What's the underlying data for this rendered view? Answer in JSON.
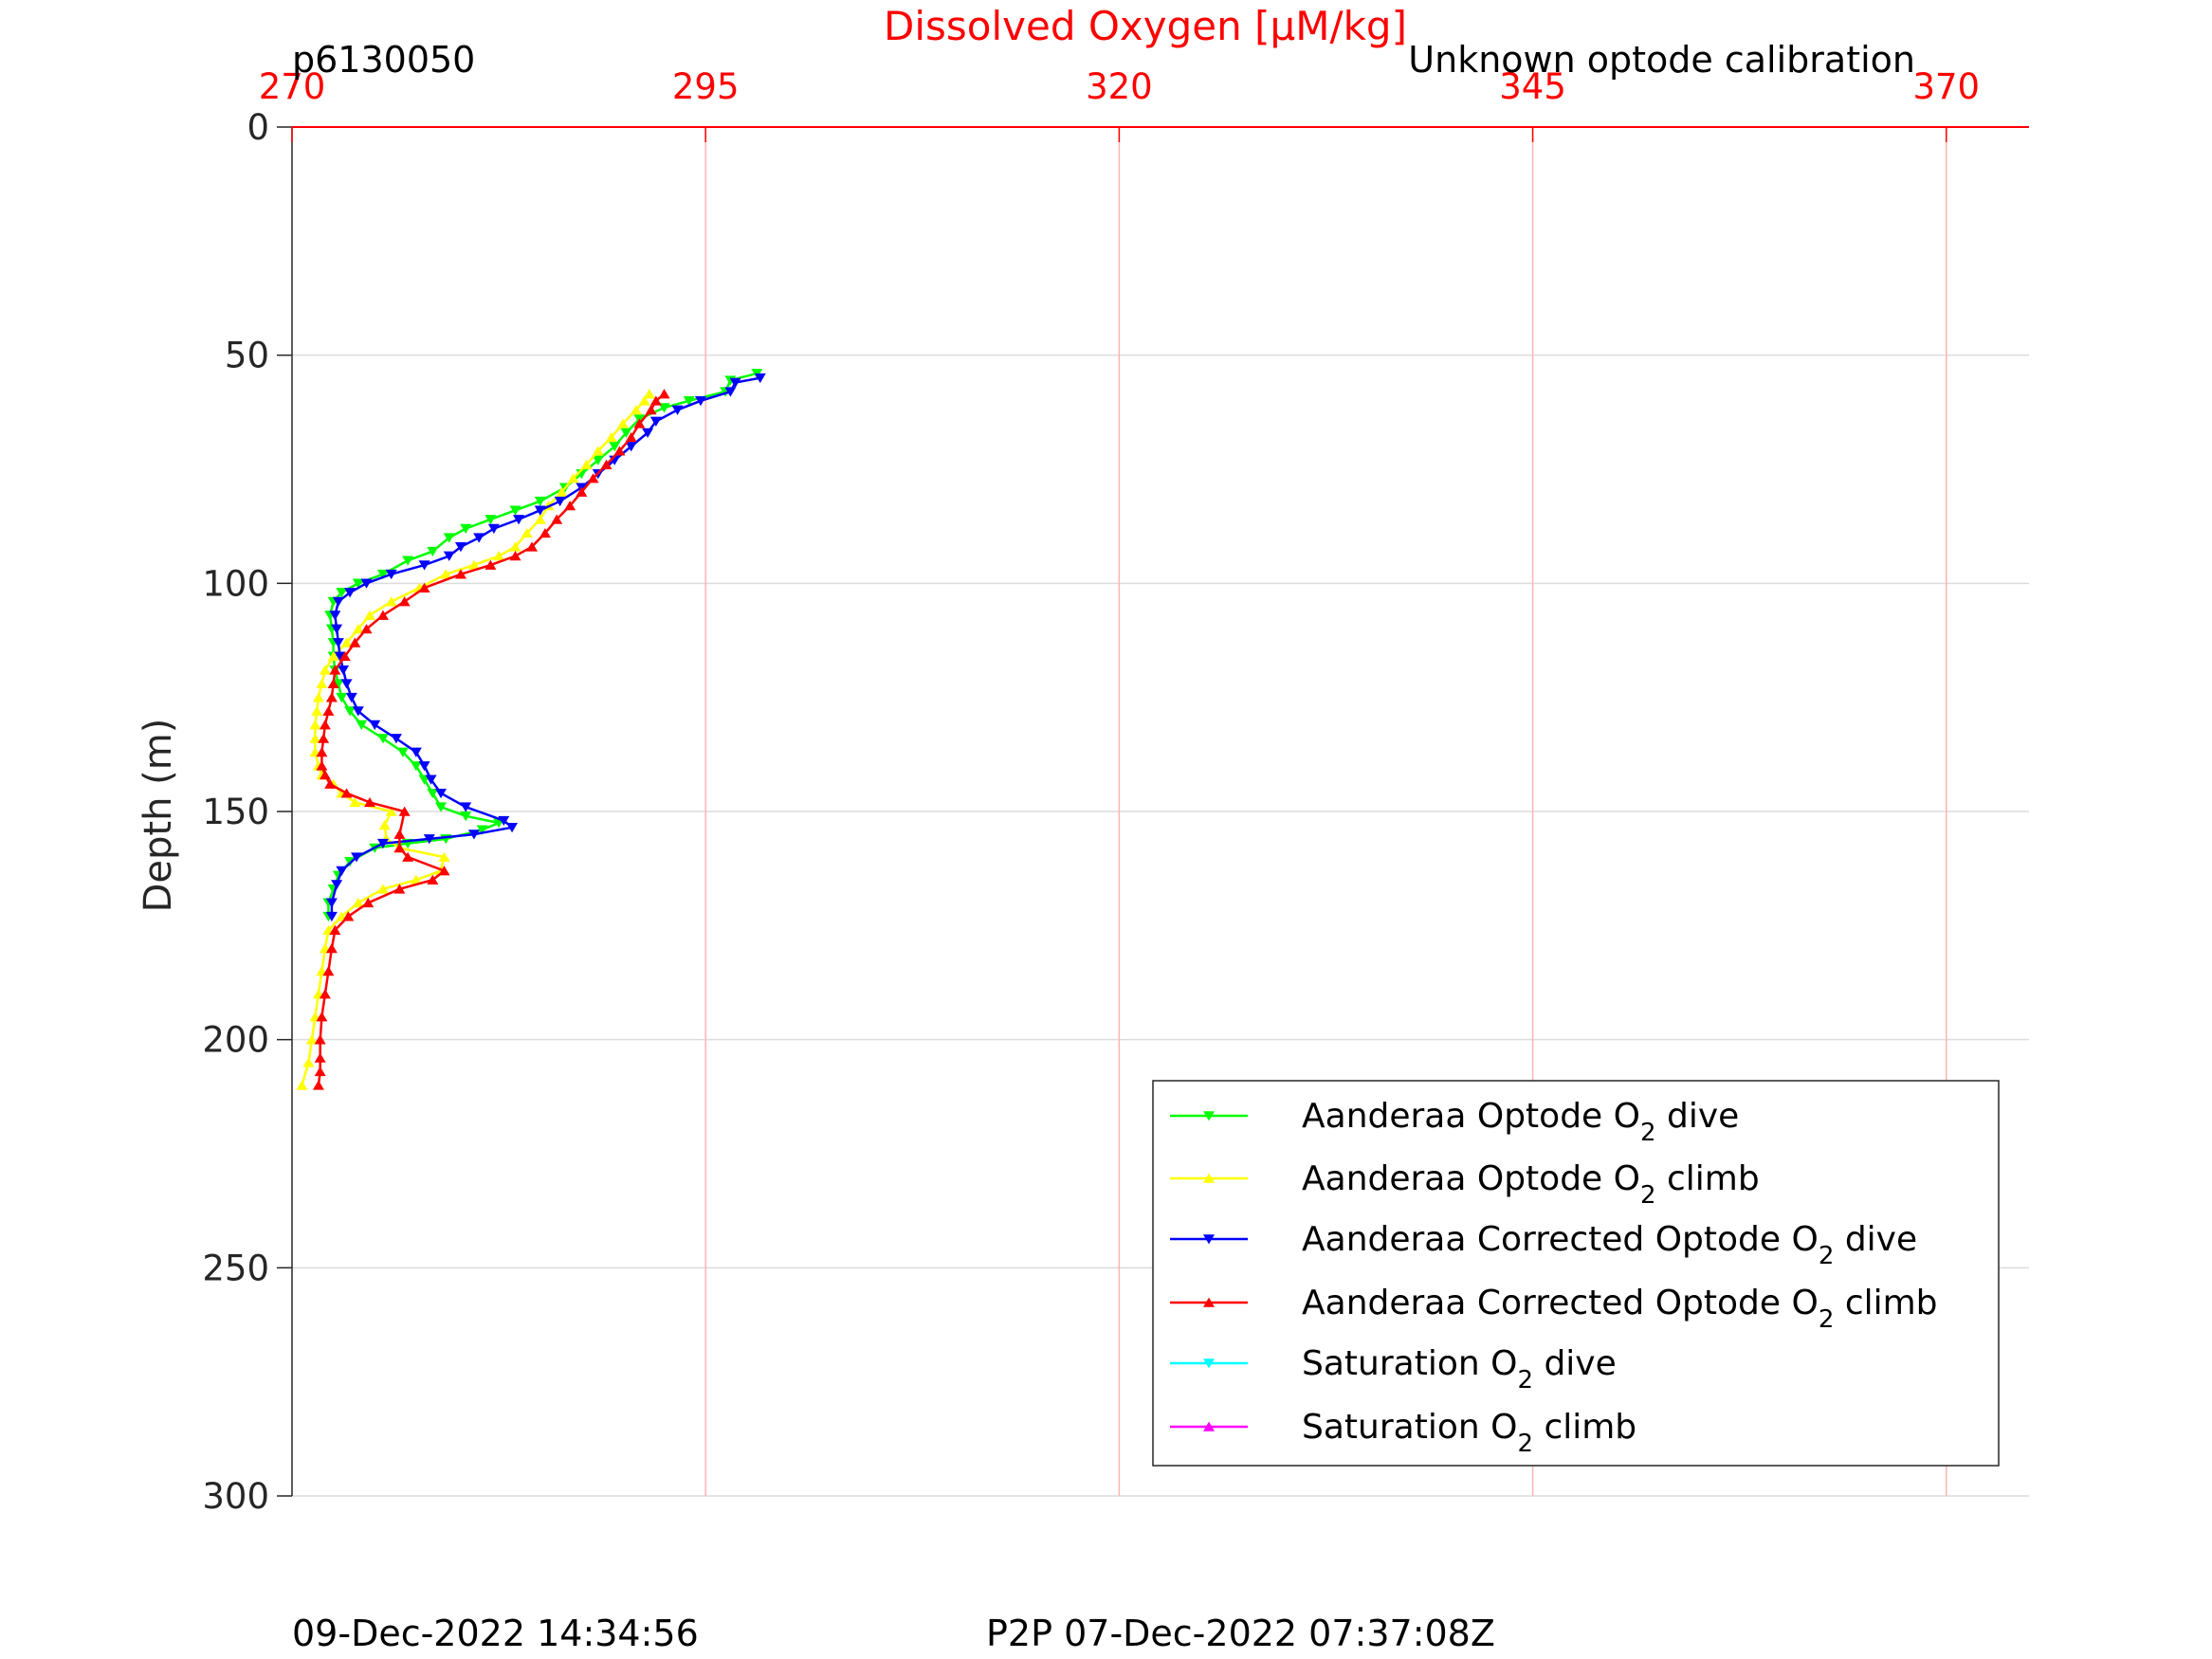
{
  "header": {
    "left_label": "p6130050",
    "right_label": "Unknown optode calibration"
  },
  "footer": {
    "left_timestamp": "09-Dec-2022 14:34:56",
    "right_timestamp": "P2P 07-Dec-2022 07:37:08Z"
  },
  "chart_data": {
    "type": "line",
    "title": "",
    "xlabel": "Dissolved Oxygen [μM/kg]",
    "ylabel": "Depth (m)",
    "xlim": [
      270,
      375
    ],
    "ylim": [
      0,
      300
    ],
    "y_reversed": true,
    "x_axis_position": "top",
    "x_ticks": [
      270,
      295,
      320,
      345,
      370
    ],
    "y_ticks": [
      0,
      50,
      100,
      150,
      200,
      250,
      300
    ],
    "grid": true,
    "legend_position": "bottom-right",
    "colors": {
      "axis_x": "#ff0000",
      "axis_y": "#262626",
      "x_grid": "#ffb3b3",
      "y_grid": "#dcdcdc"
    },
    "series": [
      {
        "name_prefix": "Aanderaa Optode O",
        "name_sub": "2",
        "name_suffix": " dive",
        "color": "#00ff00",
        "marker": "triangle-down",
        "points": [
          [
            298.1,
            54
          ],
          [
            296.5,
            55.5
          ],
          [
            296.2,
            58
          ],
          [
            294,
            60
          ],
          [
            292.5,
            61.5
          ],
          [
            291,
            64
          ],
          [
            290.2,
            67
          ],
          [
            289.5,
            70
          ],
          [
            288.5,
            73
          ],
          [
            287.5,
            76
          ],
          [
            286.5,
            79
          ],
          [
            285,
            82
          ],
          [
            283.5,
            84
          ],
          [
            282,
            86
          ],
          [
            280.5,
            88
          ],
          [
            279.5,
            90
          ],
          [
            278.5,
            93
          ],
          [
            277,
            95
          ],
          [
            275.5,
            98
          ],
          [
            274,
            100
          ],
          [
            273,
            102
          ],
          [
            272.5,
            104
          ],
          [
            272.3,
            107
          ],
          [
            272.4,
            110
          ],
          [
            272.5,
            113
          ],
          [
            272.5,
            116
          ],
          [
            272.6,
            119
          ],
          [
            272.8,
            122
          ],
          [
            273,
            125
          ],
          [
            273.5,
            128
          ],
          [
            274.2,
            131
          ],
          [
            275.5,
            134
          ],
          [
            276.7,
            137
          ],
          [
            277.5,
            140
          ],
          [
            278,
            143
          ],
          [
            278.5,
            146
          ],
          [
            279,
            149
          ],
          [
            280.5,
            151
          ],
          [
            282.5,
            152.5
          ],
          [
            281.5,
            154
          ],
          [
            279.3,
            156
          ],
          [
            277,
            157
          ],
          [
            275,
            158
          ],
          [
            273.5,
            161
          ],
          [
            272.8,
            164
          ],
          [
            272.5,
            167
          ],
          [
            272.2,
            170
          ],
          [
            272.2,
            173
          ]
        ]
      },
      {
        "name_prefix": "Aanderaa Optode O",
        "name_sub": "2",
        "name_suffix": " climb",
        "color": "#ffff00",
        "marker": "triangle-up",
        "points": [
          [
            270.6,
            210
          ],
          [
            271,
            205
          ],
          [
            271.2,
            200
          ],
          [
            271.4,
            195
          ],
          [
            271.6,
            190
          ],
          [
            271.8,
            185
          ],
          [
            272,
            180
          ],
          [
            272.2,
            176
          ],
          [
            273,
            173
          ],
          [
            274,
            170
          ],
          [
            275.5,
            167
          ],
          [
            277.5,
            165
          ],
          [
            279,
            163
          ],
          [
            279.2,
            160
          ],
          [
            276.5,
            158
          ],
          [
            275.7,
            156
          ],
          [
            275.6,
            153
          ],
          [
            276,
            150
          ],
          [
            273.8,
            148
          ],
          [
            273,
            146
          ],
          [
            272.5,
            144
          ],
          [
            271.8,
            142
          ],
          [
            271.6,
            140
          ],
          [
            271.4,
            137
          ],
          [
            271.4,
            134
          ],
          [
            271.4,
            131
          ],
          [
            271.5,
            128
          ],
          [
            271.6,
            125
          ],
          [
            271.8,
            122
          ],
          [
            272,
            119
          ],
          [
            272.5,
            116
          ],
          [
            273.3,
            113
          ],
          [
            274,
            110
          ],
          [
            274.7,
            107
          ],
          [
            276,
            104
          ],
          [
            277.7,
            101
          ],
          [
            279.3,
            98
          ],
          [
            281,
            96
          ],
          [
            282.5,
            94
          ],
          [
            283.5,
            92
          ],
          [
            284.2,
            89
          ],
          [
            285,
            86
          ],
          [
            285.5,
            83
          ],
          [
            286.3,
            80
          ],
          [
            287,
            77
          ],
          [
            287.8,
            74
          ],
          [
            288.5,
            71
          ],
          [
            289.3,
            68
          ],
          [
            290,
            65
          ],
          [
            290.8,
            62
          ],
          [
            291.3,
            60
          ],
          [
            291.6,
            58.5
          ]
        ]
      },
      {
        "name_prefix": "Aanderaa Corrected Optode O",
        "name_sub": "2",
        "name_suffix": " dive",
        "color": "#0000ff",
        "marker": "triangle-down",
        "points": [
          [
            298.3,
            55
          ],
          [
            296.8,
            56
          ],
          [
            296.5,
            58
          ],
          [
            294.7,
            60
          ],
          [
            293.3,
            62
          ],
          [
            292,
            64.5
          ],
          [
            291.5,
            67
          ],
          [
            290.5,
            70
          ],
          [
            289.5,
            73
          ],
          [
            288.5,
            76
          ],
          [
            287.5,
            79
          ],
          [
            286.2,
            82
          ],
          [
            285,
            84
          ],
          [
            283.7,
            86
          ],
          [
            282.2,
            88
          ],
          [
            281.3,
            90
          ],
          [
            280.2,
            92
          ],
          [
            279.5,
            94
          ],
          [
            278,
            96
          ],
          [
            276,
            98
          ],
          [
            274.5,
            100
          ],
          [
            273.5,
            102
          ],
          [
            272.8,
            104
          ],
          [
            272.6,
            107
          ],
          [
            272.7,
            110
          ],
          [
            272.8,
            113
          ],
          [
            272.9,
            116
          ],
          [
            273.1,
            119
          ],
          [
            273.3,
            122
          ],
          [
            273.6,
            125
          ],
          [
            274,
            128
          ],
          [
            275,
            131
          ],
          [
            276.3,
            134
          ],
          [
            277.5,
            137
          ],
          [
            278,
            140
          ],
          [
            278.4,
            143
          ],
          [
            279,
            146
          ],
          [
            280.5,
            149
          ],
          [
            282.8,
            152
          ],
          [
            283.3,
            153.5
          ],
          [
            281,
            155
          ],
          [
            278.3,
            156
          ],
          [
            275.5,
            157
          ],
          [
            273.9,
            160
          ],
          [
            273,
            163
          ],
          [
            272.7,
            166
          ],
          [
            272.4,
            170
          ],
          [
            272.4,
            173
          ]
        ]
      },
      {
        "name_prefix": "Aanderaa Corrected Optode O",
        "name_sub": "2",
        "name_suffix": " climb",
        "color": "#ff0000",
        "marker": "triangle-up",
        "points": [
          [
            271.6,
            210
          ],
          [
            271.7,
            207
          ],
          [
            271.7,
            204
          ],
          [
            271.7,
            200
          ],
          [
            271.8,
            195
          ],
          [
            272,
            190
          ],
          [
            272.2,
            185
          ],
          [
            272.4,
            180
          ],
          [
            272.6,
            176
          ],
          [
            273.4,
            173
          ],
          [
            274.6,
            170
          ],
          [
            276.5,
            167
          ],
          [
            278.5,
            165
          ],
          [
            279.2,
            163
          ],
          [
            277,
            160
          ],
          [
            276.5,
            158
          ],
          [
            276.5,
            155
          ],
          [
            276.8,
            150
          ],
          [
            274.7,
            148
          ],
          [
            273.3,
            146
          ],
          [
            272.3,
            144
          ],
          [
            272,
            142
          ],
          [
            271.8,
            140
          ],
          [
            271.8,
            137
          ],
          [
            271.9,
            134
          ],
          [
            272,
            131
          ],
          [
            272.2,
            128
          ],
          [
            272.4,
            125
          ],
          [
            272.5,
            122
          ],
          [
            272.6,
            119
          ],
          [
            273.2,
            116
          ],
          [
            273.8,
            113
          ],
          [
            274.5,
            110
          ],
          [
            275.5,
            107
          ],
          [
            276.8,
            104
          ],
          [
            278,
            101
          ],
          [
            280.2,
            98
          ],
          [
            282,
            96
          ],
          [
            283.5,
            94
          ],
          [
            284.5,
            92
          ],
          [
            285.3,
            89
          ],
          [
            286,
            86
          ],
          [
            286.8,
            83
          ],
          [
            287.5,
            80
          ],
          [
            288.2,
            77
          ],
          [
            289,
            74
          ],
          [
            289.8,
            71
          ],
          [
            290.5,
            68
          ],
          [
            291,
            65
          ],
          [
            291.7,
            62
          ],
          [
            292,
            60
          ],
          [
            292.5,
            58.5
          ]
        ]
      },
      {
        "name_prefix": "Saturation O",
        "name_sub": "2",
        "name_suffix": " dive",
        "color": "#00ffff",
        "marker": "triangle-down",
        "points": []
      },
      {
        "name_prefix": "Saturation O",
        "name_sub": "2",
        "name_suffix": " climb",
        "color": "#ff00ff",
        "marker": "triangle-up",
        "points": []
      }
    ]
  }
}
